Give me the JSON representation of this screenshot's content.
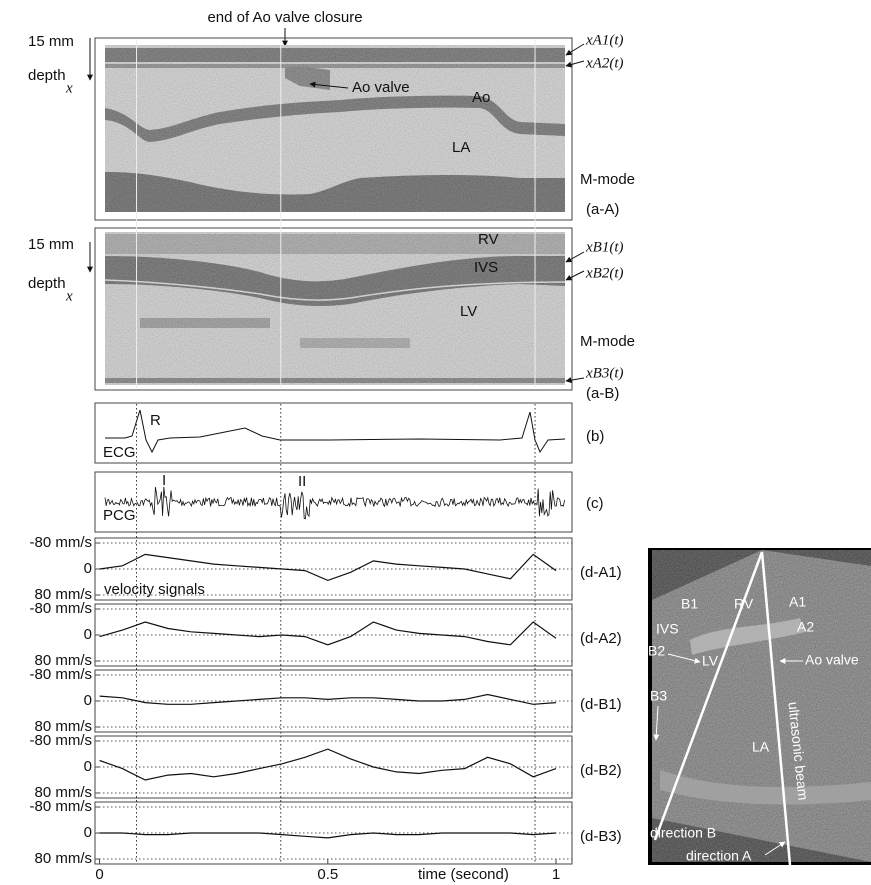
{
  "figure": {
    "top_annotation": "end of Ao valve closure",
    "panel_aA": {
      "depth_scale": "15 mm",
      "depth_label": "depth",
      "depth_var": "x",
      "traces": [
        "xA1(t)",
        "xA2(t)"
      ],
      "labels": [
        "Ao valve",
        "Ao",
        "LA"
      ],
      "mode": "M-mode",
      "panel_label": "(a-A)"
    },
    "panel_aB": {
      "depth_scale": "15 mm",
      "depth_label": "depth",
      "depth_var": "x",
      "traces": [
        "xB1(t)",
        "xB2(t)",
        "xB3(t)"
      ],
      "labels": [
        "RV",
        "IVS",
        "LV"
      ],
      "mode": "M-mode",
      "panel_label": "(a-B)"
    },
    "panel_b": {
      "labels": [
        "R",
        "ECG"
      ],
      "panel_label": "(b)"
    },
    "panel_c": {
      "labels": [
        "I",
        "II",
        "PCG"
      ],
      "panel_label": "(c)"
    },
    "time_markers": [
      0.081,
      0.397,
      0.954
    ],
    "echo_image": {
      "labels": [
        "B1",
        "RV",
        "A1",
        "IVS",
        "A2",
        "B2",
        "LV",
        "Ao valve",
        "B3",
        "LA",
        "ultrasonic beam",
        "direction B",
        "direction A"
      ]
    }
  },
  "chart_data": [
    {
      "type": "line",
      "panel_label": "(d-A1)",
      "annotation": "velocity signals",
      "x": [
        0,
        0.05,
        0.1,
        0.15,
        0.2,
        0.25,
        0.3,
        0.35,
        0.4,
        0.45,
        0.5,
        0.55,
        0.6,
        0.65,
        0.7,
        0.75,
        0.8,
        0.85,
        0.9,
        0.95,
        1
      ],
      "values": [
        0,
        -10,
        -45,
        -35,
        -25,
        -15,
        -10,
        -5,
        0,
        5,
        35,
        10,
        -25,
        -15,
        -10,
        -5,
        0,
        15,
        30,
        -45,
        5
      ],
      "color": "#111",
      "xlim": [
        -0.01,
        1.035
      ],
      "ylim": [
        80,
        -80
      ],
      "yticks": [
        {
          "value": -80,
          "label": "-80 mm/s"
        },
        0,
        {
          "value": 80,
          "label": "80 mm/s"
        }
      ]
    },
    {
      "type": "line",
      "panel_label": "(d-A2)",
      "x": [
        0,
        0.05,
        0.1,
        0.15,
        0.2,
        0.25,
        0.3,
        0.35,
        0.4,
        0.45,
        0.5,
        0.55,
        0.6,
        0.65,
        0.7,
        0.75,
        0.8,
        0.85,
        0.9,
        0.95,
        1
      ],
      "values": [
        5,
        -15,
        -40,
        -20,
        -10,
        -5,
        0,
        5,
        0,
        5,
        30,
        5,
        -40,
        -15,
        -5,
        0,
        5,
        20,
        30,
        -40,
        10
      ],
      "color": "#111",
      "xlim": [
        -0.01,
        1.035
      ],
      "ylim": [
        80,
        -80
      ],
      "yticks": [
        {
          "value": -80,
          "label": "-80 mm/s"
        },
        0,
        {
          "value": 80,
          "label": "80 mm/s"
        }
      ]
    },
    {
      "type": "line",
      "panel_label": "(d-B1)",
      "x": [
        0,
        0.05,
        0.1,
        0.15,
        0.2,
        0.25,
        0.3,
        0.35,
        0.4,
        0.45,
        0.5,
        0.55,
        0.6,
        0.65,
        0.7,
        0.75,
        0.8,
        0.85,
        0.9,
        0.95,
        1
      ],
      "values": [
        -15,
        -10,
        5,
        10,
        10,
        5,
        0,
        -5,
        -10,
        -10,
        -5,
        -10,
        -10,
        -5,
        0,
        0,
        -5,
        -20,
        -5,
        10,
        5
      ],
      "color": "#111",
      "xlim": [
        -0.01,
        1.035
      ],
      "ylim": [
        80,
        -80
      ],
      "yticks": [
        {
          "value": -80,
          "label": "-80 mm/s"
        },
        0,
        {
          "value": 80,
          "label": "80 mm/s"
        }
      ]
    },
    {
      "type": "line",
      "panel_label": "(d-B2)",
      "x": [
        0,
        0.05,
        0.1,
        0.15,
        0.2,
        0.25,
        0.3,
        0.35,
        0.4,
        0.45,
        0.5,
        0.55,
        0.6,
        0.65,
        0.7,
        0.75,
        0.8,
        0.85,
        0.9,
        0.95,
        1
      ],
      "values": [
        -20,
        5,
        40,
        25,
        20,
        30,
        20,
        5,
        -10,
        -30,
        -55,
        -25,
        0,
        15,
        20,
        10,
        5,
        -30,
        -10,
        30,
        5
      ],
      "color": "#111",
      "xlim": [
        -0.01,
        1.035
      ],
      "ylim": [
        80,
        -80
      ],
      "yticks": [
        {
          "value": -80,
          "label": "-80 mm/s"
        },
        0,
        {
          "value": 80,
          "label": "80 mm/s"
        }
      ]
    },
    {
      "type": "line",
      "panel_label": "(d-B3)",
      "x": [
        0,
        0.05,
        0.1,
        0.15,
        0.2,
        0.25,
        0.3,
        0.35,
        0.4,
        0.45,
        0.5,
        0.55,
        0.6,
        0.65,
        0.7,
        0.75,
        0.8,
        0.85,
        0.9,
        0.95,
        1
      ],
      "values": [
        0,
        0,
        5,
        5,
        0,
        0,
        0,
        0,
        5,
        10,
        15,
        5,
        0,
        5,
        5,
        0,
        0,
        0,
        0,
        5,
        0
      ],
      "color": "#111",
      "xlim": [
        -0.01,
        1.035
      ],
      "ylim": [
        80,
        -80
      ],
      "yticks": [
        {
          "value": -80,
          "label": "-80 mm/s"
        },
        0,
        {
          "value": 80,
          "label": "80 mm/s"
        }
      ],
      "xticks": [
        0,
        0.5,
        1
      ],
      "xlabel": "time (second)"
    }
  ]
}
